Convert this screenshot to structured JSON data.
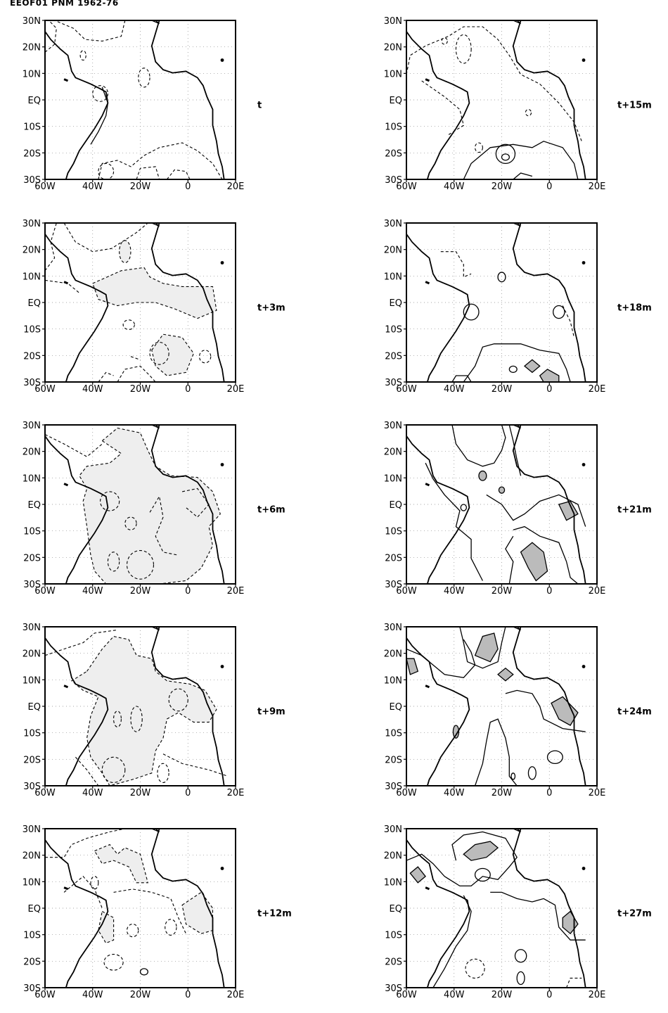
{
  "figure": {
    "title": "EEOF01  PNM  1962-76",
    "lat_ticks": [
      "30N",
      "20N",
      "10N",
      "EQ",
      "10S",
      "20S",
      "30S"
    ],
    "lon_ticks": [
      "60W",
      "40W",
      "20W",
      "0",
      "20E"
    ],
    "panels": [
      {
        "id": "t",
        "label": "t"
      },
      {
        "id": "t3",
        "label": "t+3m"
      },
      {
        "id": "t6",
        "label": "t+6m"
      },
      {
        "id": "t9",
        "label": "t+9m"
      },
      {
        "id": "t12",
        "label": "t+12m"
      },
      {
        "id": "t15",
        "label": "t+15m"
      },
      {
        "id": "t18",
        "label": "t+18m"
      },
      {
        "id": "t21",
        "label": "t+21m"
      },
      {
        "id": "t24",
        "label": "t+24m"
      },
      {
        "id": "t27",
        "label": "t+27m"
      }
    ],
    "colors": {
      "negative_fill": "#eeeeee",
      "positive_fill": "#bbbbbb",
      "line": "#000000",
      "grid": "#888888"
    }
  }
}
